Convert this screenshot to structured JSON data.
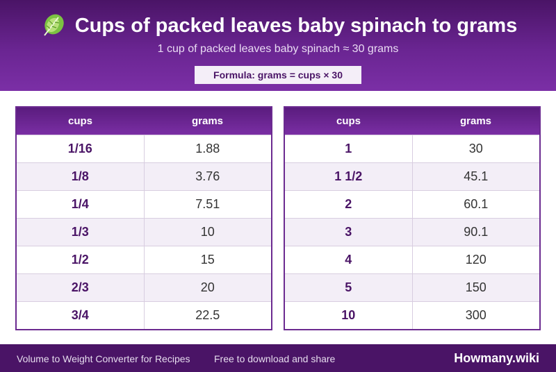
{
  "header": {
    "title": "Cups of packed leaves baby spinach to grams",
    "subtitle": "1 cup of packed leaves baby spinach ≈ 30 grams",
    "formula": "Formula: grams = cups × 30",
    "icon": "leafy-greens-icon"
  },
  "table_left": {
    "headers": [
      "cups",
      "grams"
    ],
    "rows": [
      {
        "cups": "1/16",
        "grams": "1.88"
      },
      {
        "cups": "1/8",
        "grams": "3.76"
      },
      {
        "cups": "1/4",
        "grams": "7.51"
      },
      {
        "cups": "1/3",
        "grams": "10"
      },
      {
        "cups": "1/2",
        "grams": "15"
      },
      {
        "cups": "2/3",
        "grams": "20"
      },
      {
        "cups": "3/4",
        "grams": "22.5"
      }
    ]
  },
  "table_right": {
    "headers": [
      "cups",
      "grams"
    ],
    "rows": [
      {
        "cups": "1",
        "grams": "30"
      },
      {
        "cups": "1 1/2",
        "grams": "45.1"
      },
      {
        "cups": "2",
        "grams": "60.1"
      },
      {
        "cups": "3",
        "grams": "90.1"
      },
      {
        "cups": "4",
        "grams": "120"
      },
      {
        "cups": "5",
        "grams": "150"
      },
      {
        "cups": "10",
        "grams": "300"
      }
    ]
  },
  "footer": {
    "left": "Volume to Weight Converter for Recipes",
    "middle": "Free to download and share",
    "brand": "Howmany.wiki"
  },
  "colors": {
    "header_purple": "#6a2592",
    "dark_purple": "#4a1466",
    "row_alt": "#f3eef7"
  }
}
